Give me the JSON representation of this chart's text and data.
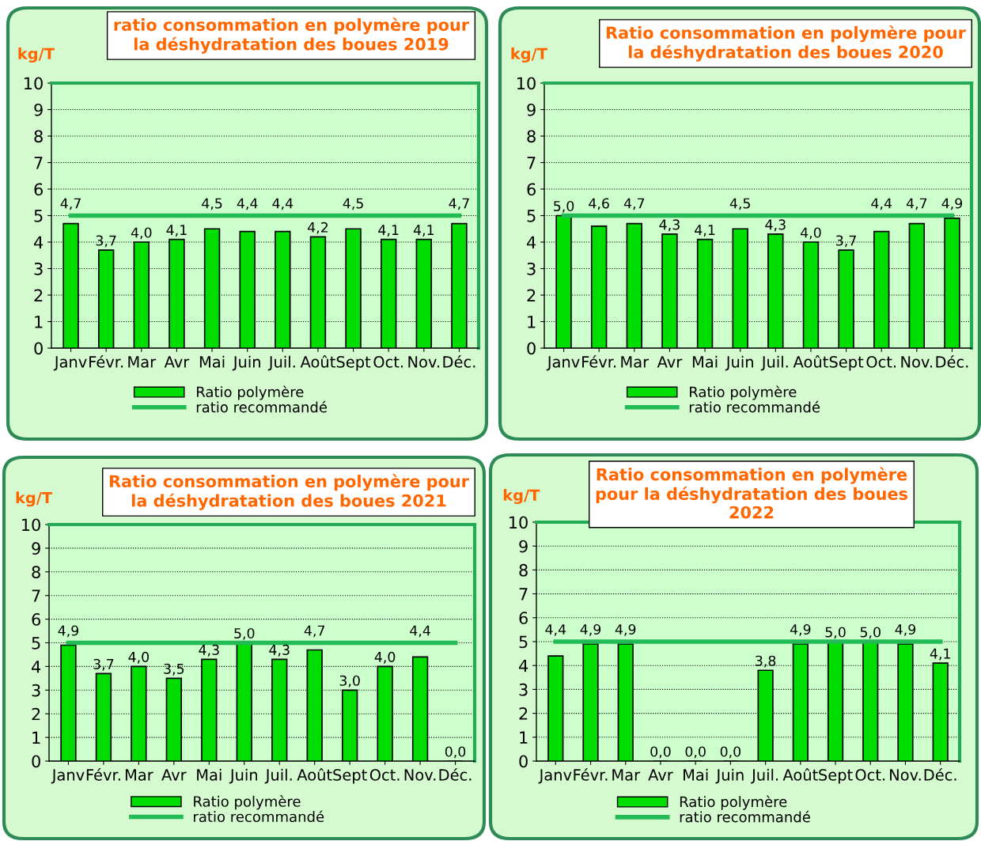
{
  "chart_data": [
    {
      "type": "bar",
      "title": "ratio consommation en polymère pour\nla déshydratation des boues 2019",
      "ylabel": "kg/T",
      "categories": [
        "Janv",
        "Févr.",
        "Mar",
        "Avr",
        "Mai",
        "Juin",
        "Juil.",
        "Août",
        "Sept",
        "Oct.",
        "Nov.",
        "Déc."
      ],
      "series": [
        {
          "name": "Ratio polymère",
          "color": "#00dd00",
          "values": [
            4.7,
            3.7,
            4.0,
            4.1,
            4.5,
            4.4,
            4.4,
            4.2,
            4.5,
            4.1,
            4.1,
            4.7
          ],
          "value_labels": [
            "4,7",
            "3,7",
            "4,0",
            "4,1",
            "4,5",
            "4,4",
            "4,4",
            "4,2",
            "4,5",
            "4,1",
            "4,1",
            "4,7"
          ]
        },
        {
          "name": "ratio recommandé",
          "type": "line",
          "color": "#22bb55",
          "values": [
            5,
            5,
            5,
            5,
            5,
            5,
            5,
            5,
            5,
            5,
            5,
            5
          ]
        }
      ],
      "ylim": [
        0,
        10
      ],
      "yticks": [
        0,
        1,
        2,
        3,
        4,
        5,
        6,
        7,
        8,
        9,
        10
      ],
      "grid": "y",
      "legend": "bottom"
    },
    {
      "type": "bar",
      "title": "Ratio consommation en polymère pour\nla déshydratation des boues 2020",
      "ylabel": "kg/T",
      "categories": [
        "Janv",
        "Févr.",
        "Mar",
        "Avr",
        "Mai",
        "Juin",
        "Juil.",
        "Août",
        "Sept",
        "Oct.",
        "Nov.",
        "Déc."
      ],
      "series": [
        {
          "name": "Ratio polymère",
          "color": "#00dd00",
          "values": [
            5.0,
            4.6,
            4.7,
            4.3,
            4.1,
            4.5,
            4.3,
            4.0,
            3.7,
            4.4,
            4.7,
            4.9
          ],
          "value_labels": [
            "5,0",
            "4,6",
            "4,7",
            "4,3",
            "4,1",
            "4,5",
            "4,3",
            "4,0",
            "3,7",
            "4,4",
            "4,7",
            "4,9"
          ]
        },
        {
          "name": "ratio recommandé",
          "type": "line",
          "color": "#22bb55",
          "values": [
            5,
            5,
            5,
            5,
            5,
            5,
            5,
            5,
            5,
            5,
            5,
            5
          ]
        }
      ],
      "ylim": [
        0,
        10
      ],
      "yticks": [
        0,
        1,
        2,
        3,
        4,
        5,
        6,
        7,
        8,
        9,
        10
      ],
      "grid": "y",
      "legend": "bottom"
    },
    {
      "type": "bar",
      "title": "Ratio consommation en polymère pour\nla déshydratation des boues 2021",
      "ylabel": "kg/T",
      "categories": [
        "Janv",
        "Févr.",
        "Mar",
        "Avr",
        "Mai",
        "Juin",
        "Juil.",
        "Août",
        "Sept",
        "Oct.",
        "Nov.",
        "Déc."
      ],
      "series": [
        {
          "name": "Ratio polymère",
          "color": "#00dd00",
          "values": [
            4.9,
            3.7,
            4.0,
            3.5,
            4.3,
            5.0,
            4.3,
            4.7,
            3.0,
            4.0,
            4.4,
            0.0
          ],
          "value_labels": [
            "4,9",
            "3,7",
            "4,0",
            "3,5",
            "4,3",
            "5,0",
            "4,3",
            "4,7",
            "3,0",
            "4,0",
            "4,4",
            "0,0"
          ]
        },
        {
          "name": "ratio recommandé",
          "type": "line",
          "color": "#22bb55",
          "values": [
            5,
            5,
            5,
            5,
            5,
            5,
            5,
            5,
            5,
            5,
            5,
            5
          ]
        }
      ],
      "ylim": [
        0,
        10
      ],
      "yticks": [
        0,
        1,
        2,
        3,
        4,
        5,
        6,
        7,
        8,
        9,
        10
      ],
      "grid": "y",
      "legend": "bottom"
    },
    {
      "type": "bar",
      "title": "Ratio consommation en polymère\npour la déshydratation des boues\n2022",
      "ylabel": "kg/T",
      "categories": [
        "Janv",
        "Févr.",
        "Mar",
        "Avr",
        "Mai",
        "Juin",
        "Juil.",
        "Août",
        "Sept",
        "Oct.",
        "Nov.",
        "Déc."
      ],
      "series": [
        {
          "name": "Ratio polymère",
          "color": "#00dd00",
          "values": [
            4.4,
            4.9,
            4.9,
            0.0,
            0.0,
            0.0,
            3.8,
            4.9,
            5.0,
            5.0,
            4.9,
            4.1
          ],
          "value_labels": [
            "4,4",
            "4,9",
            "4,9",
            "0,0",
            "0,0",
            "0,0",
            "3,8",
            "4,9",
            "5,0",
            "5,0",
            "4,9",
            "4,1"
          ]
        },
        {
          "name": "ratio recommandé",
          "type": "line",
          "color": "#22bb55",
          "values": [
            5,
            5,
            5,
            5,
            5,
            5,
            5,
            5,
            5,
            5,
            5,
            5
          ]
        }
      ],
      "ylim": [
        0,
        10
      ],
      "yticks": [
        0,
        1,
        2,
        3,
        4,
        5,
        6,
        7,
        8,
        9,
        10
      ],
      "grid": "y",
      "legend": "bottom"
    }
  ]
}
